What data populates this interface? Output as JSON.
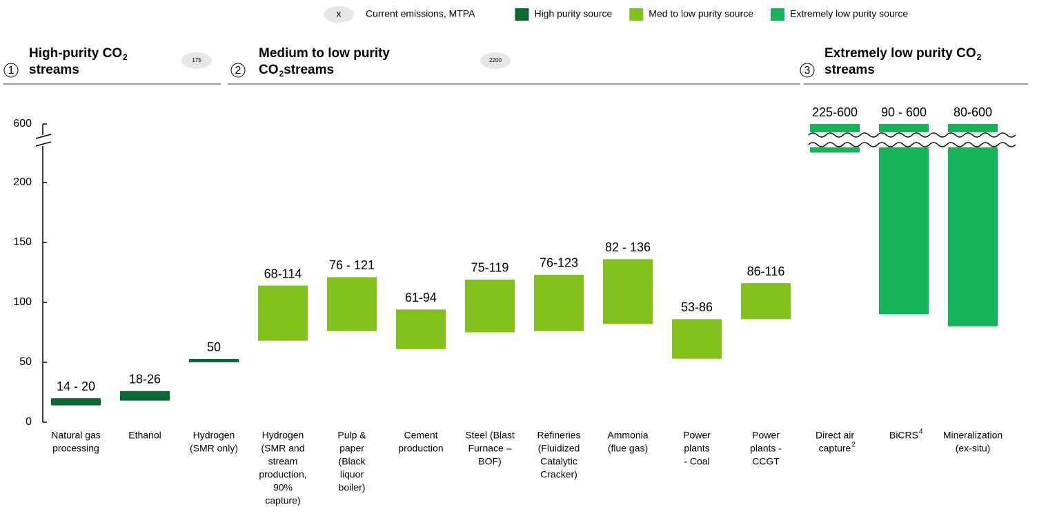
{
  "chart_data": {
    "type": "range_bar",
    "legend_title": "Current emissions, MTPA",
    "legend_marker": "x",
    "ylim": [
      0,
      600
    ],
    "y_break": 230,
    "yticks": [
      0,
      50,
      100,
      150,
      200,
      600
    ],
    "series": [
      {
        "name": "High purity source",
        "color": "#0b6a34",
        "number": 1,
        "emissions": 175,
        "header": [
          [
            "High-purity CO",
            "2"
          ],
          [
            "streams"
          ]
        ],
        "categories": [
          [
            "Natural gas",
            "processing"
          ],
          [
            "Ethanol"
          ],
          [
            "Hydrogen",
            "(SMR only)"
          ]
        ],
        "footnotes": [
          null,
          null,
          null
        ],
        "low": [
          14,
          18,
          50
        ],
        "high": [
          20,
          26,
          50
        ],
        "value_labels": [
          "14 - 20",
          "18-26",
          "50"
        ]
      },
      {
        "name": "Med to low purity source",
        "color": "#80c11c",
        "number": 2,
        "emissions": 2200,
        "header": [
          [
            "Medium to low purity"
          ],
          [
            "CO",
            "2",
            " streams"
          ]
        ],
        "categories": [
          [
            "Hydrogen",
            "(SMR and",
            "stream",
            "production,",
            "90%",
            "capture)"
          ],
          [
            "Pulp &",
            "paper",
            "(Black",
            "liquor",
            "boiler)"
          ],
          [
            "Cement",
            "production"
          ],
          [
            "Steel (Blast",
            "Furnace –",
            "BOF)"
          ],
          [
            "Refineries",
            "(Fluidized",
            "Catalytic",
            "Cracker)"
          ],
          [
            "Ammonia",
            "(flue gas)"
          ],
          [
            "Power",
            "plants",
            "- Coal"
          ],
          [
            "Power",
            "plants -",
            "CCGT"
          ]
        ],
        "footnotes": [
          null,
          null,
          null,
          null,
          null,
          null,
          null,
          null
        ],
        "low": [
          68,
          76,
          61,
          75,
          76,
          82,
          53,
          86
        ],
        "high": [
          114,
          121,
          94,
          119,
          123,
          136,
          86,
          116
        ],
        "value_labels": [
          "68-114",
          "76 - 121",
          "61-94",
          "75-119",
          "76-123",
          "82 - 136",
          "53-86",
          "86-116"
        ]
      },
      {
        "name": "Extremely low purity source",
        "color": "#16b35a",
        "number": 3,
        "emissions": null,
        "header": [
          [
            "Extremely low purity CO",
            "2"
          ],
          [
            "streams"
          ]
        ],
        "categories": [
          [
            "Direct air",
            "capture"
          ],
          [
            "BiCRS"
          ],
          [
            "Mineralization",
            "(ex-situ)"
          ]
        ],
        "footnotes": [
          "2",
          "4",
          null
        ],
        "low": [
          225,
          90,
          80
        ],
        "high": [
          600,
          600,
          600
        ],
        "value_labels": [
          "225-600",
          "90 - 600",
          "80-600"
        ]
      }
    ]
  }
}
